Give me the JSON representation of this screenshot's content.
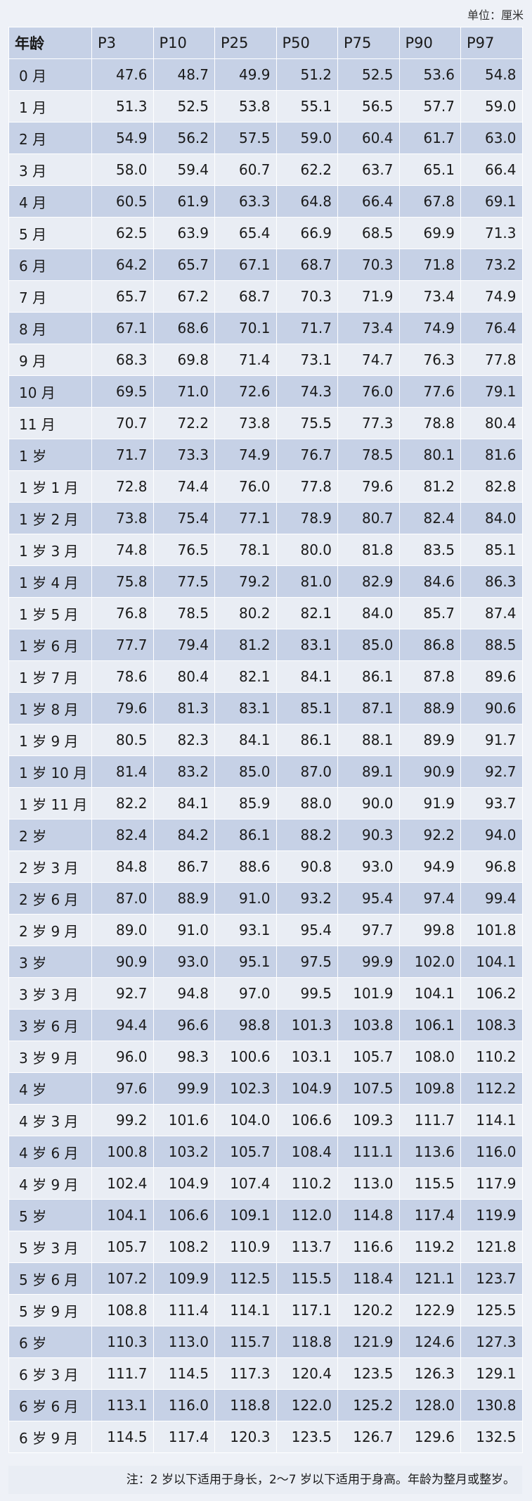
{
  "unit_label": "单位：厘米",
  "headers": [
    "年龄",
    "P3",
    "P10",
    "P25",
    "P50",
    "P75",
    "P90",
    "P97"
  ],
  "rows": [
    [
      "0 月",
      "47.6",
      "48.7",
      "49.9",
      "51.2",
      "52.5",
      "53.6",
      "54.8"
    ],
    [
      "1 月",
      "51.3",
      "52.5",
      "53.8",
      "55.1",
      "56.5",
      "57.7",
      "59.0"
    ],
    [
      "2 月",
      "54.9",
      "56.2",
      "57.5",
      "59.0",
      "60.4",
      "61.7",
      "63.0"
    ],
    [
      "3 月",
      "58.0",
      "59.4",
      "60.7",
      "62.2",
      "63.7",
      "65.1",
      "66.4"
    ],
    [
      "4 月",
      "60.5",
      "61.9",
      "63.3",
      "64.8",
      "66.4",
      "67.8",
      "69.1"
    ],
    [
      "5 月",
      "62.5",
      "63.9",
      "65.4",
      "66.9",
      "68.5",
      "69.9",
      "71.3"
    ],
    [
      "6 月",
      "64.2",
      "65.7",
      "67.1",
      "68.7",
      "70.3",
      "71.8",
      "73.2"
    ],
    [
      "7 月",
      "65.7",
      "67.2",
      "68.7",
      "70.3",
      "71.9",
      "73.4",
      "74.9"
    ],
    [
      "8 月",
      "67.1",
      "68.6",
      "70.1",
      "71.7",
      "73.4",
      "74.9",
      "76.4"
    ],
    [
      "9 月",
      "68.3",
      "69.8",
      "71.4",
      "73.1",
      "74.7",
      "76.3",
      "77.8"
    ],
    [
      "10 月",
      "69.5",
      "71.0",
      "72.6",
      "74.3",
      "76.0",
      "77.6",
      "79.1"
    ],
    [
      "11 月",
      "70.7",
      "72.2",
      "73.8",
      "75.5",
      "77.3",
      "78.8",
      "80.4"
    ],
    [
      "1 岁",
      "71.7",
      "73.3",
      "74.9",
      "76.7",
      "78.5",
      "80.1",
      "81.6"
    ],
    [
      "1 岁 1 月",
      "72.8",
      "74.4",
      "76.0",
      "77.8",
      "79.6",
      "81.2",
      "82.8"
    ],
    [
      "1 岁 2 月",
      "73.8",
      "75.4",
      "77.1",
      "78.9",
      "80.7",
      "82.4",
      "84.0"
    ],
    [
      "1 岁 3 月",
      "74.8",
      "76.5",
      "78.1",
      "80.0",
      "81.8",
      "83.5",
      "85.1"
    ],
    [
      "1 岁 4 月",
      "75.8",
      "77.5",
      "79.2",
      "81.0",
      "82.9",
      "84.6",
      "86.3"
    ],
    [
      "1 岁 5 月",
      "76.8",
      "78.5",
      "80.2",
      "82.1",
      "84.0",
      "85.7",
      "87.4"
    ],
    [
      "1 岁 6 月",
      "77.7",
      "79.4",
      "81.2",
      "83.1",
      "85.0",
      "86.8",
      "88.5"
    ],
    [
      "1 岁 7 月",
      "78.6",
      "80.4",
      "82.1",
      "84.1",
      "86.1",
      "87.8",
      "89.6"
    ],
    [
      "1 岁 8 月",
      "79.6",
      "81.3",
      "83.1",
      "85.1",
      "87.1",
      "88.9",
      "90.6"
    ],
    [
      "1 岁 9 月",
      "80.5",
      "82.3",
      "84.1",
      "86.1",
      "88.1",
      "89.9",
      "91.7"
    ],
    [
      "1 岁 10 月",
      "81.4",
      "83.2",
      "85.0",
      "87.0",
      "89.1",
      "90.9",
      "92.7"
    ],
    [
      "1 岁 11 月",
      "82.2",
      "84.1",
      "85.9",
      "88.0",
      "90.0",
      "91.9",
      "93.7"
    ],
    [
      "2 岁",
      "82.4",
      "84.2",
      "86.1",
      "88.2",
      "90.3",
      "92.2",
      "94.0"
    ],
    [
      "2 岁 3 月",
      "84.8",
      "86.7",
      "88.6",
      "90.8",
      "93.0",
      "94.9",
      "96.8"
    ],
    [
      "2 岁 6 月",
      "87.0",
      "88.9",
      "91.0",
      "93.2",
      "95.4",
      "97.4",
      "99.4"
    ],
    [
      "2 岁 9 月",
      "89.0",
      "91.0",
      "93.1",
      "95.4",
      "97.7",
      "99.8",
      "101.8"
    ],
    [
      "3 岁",
      "90.9",
      "93.0",
      "95.1",
      "97.5",
      "99.9",
      "102.0",
      "104.1"
    ],
    [
      "3 岁 3 月",
      "92.7",
      "94.8",
      "97.0",
      "99.5",
      "101.9",
      "104.1",
      "106.2"
    ],
    [
      "3 岁 6 月",
      "94.4",
      "96.6",
      "98.8",
      "101.3",
      "103.8",
      "106.1",
      "108.3"
    ],
    [
      "3 岁 9 月",
      "96.0",
      "98.3",
      "100.6",
      "103.1",
      "105.7",
      "108.0",
      "110.2"
    ],
    [
      "4 岁",
      "97.6",
      "99.9",
      "102.3",
      "104.9",
      "107.5",
      "109.8",
      "112.2"
    ],
    [
      "4 岁 3 月",
      "99.2",
      "101.6",
      "104.0",
      "106.6",
      "109.3",
      "111.7",
      "114.1"
    ],
    [
      "4 岁 6 月",
      "100.8",
      "103.2",
      "105.7",
      "108.4",
      "111.1",
      "113.6",
      "116.0"
    ],
    [
      "4 岁 9 月",
      "102.4",
      "104.9",
      "107.4",
      "110.2",
      "113.0",
      "115.5",
      "117.9"
    ],
    [
      "5 岁",
      "104.1",
      "106.6",
      "109.1",
      "112.0",
      "114.8",
      "117.4",
      "119.9"
    ],
    [
      "5 岁 3 月",
      "105.7",
      "108.2",
      "110.9",
      "113.7",
      "116.6",
      "119.2",
      "121.8"
    ],
    [
      "5 岁 6 月",
      "107.2",
      "109.9",
      "112.5",
      "115.5",
      "118.4",
      "121.1",
      "123.7"
    ],
    [
      "5 岁 9 月",
      "108.8",
      "111.4",
      "114.1",
      "117.1",
      "120.2",
      "122.9",
      "125.5"
    ],
    [
      "6 岁",
      "110.3",
      "113.0",
      "115.7",
      "118.8",
      "121.9",
      "124.6",
      "127.3"
    ],
    [
      "6 岁 3 月",
      "111.7",
      "114.5",
      "117.3",
      "120.4",
      "123.5",
      "126.3",
      "129.1"
    ],
    [
      "6 岁 6 月",
      "113.1",
      "116.0",
      "118.8",
      "122.0",
      "125.2",
      "128.0",
      "130.8"
    ],
    [
      "6 岁 9 月",
      "114.5",
      "117.4",
      "120.3",
      "123.5",
      "126.7",
      "129.6",
      "132.5"
    ]
  ],
  "note": "注：2 岁以下适用于身长，2～7 岁以下适用于身高。年龄为整月或整岁。"
}
